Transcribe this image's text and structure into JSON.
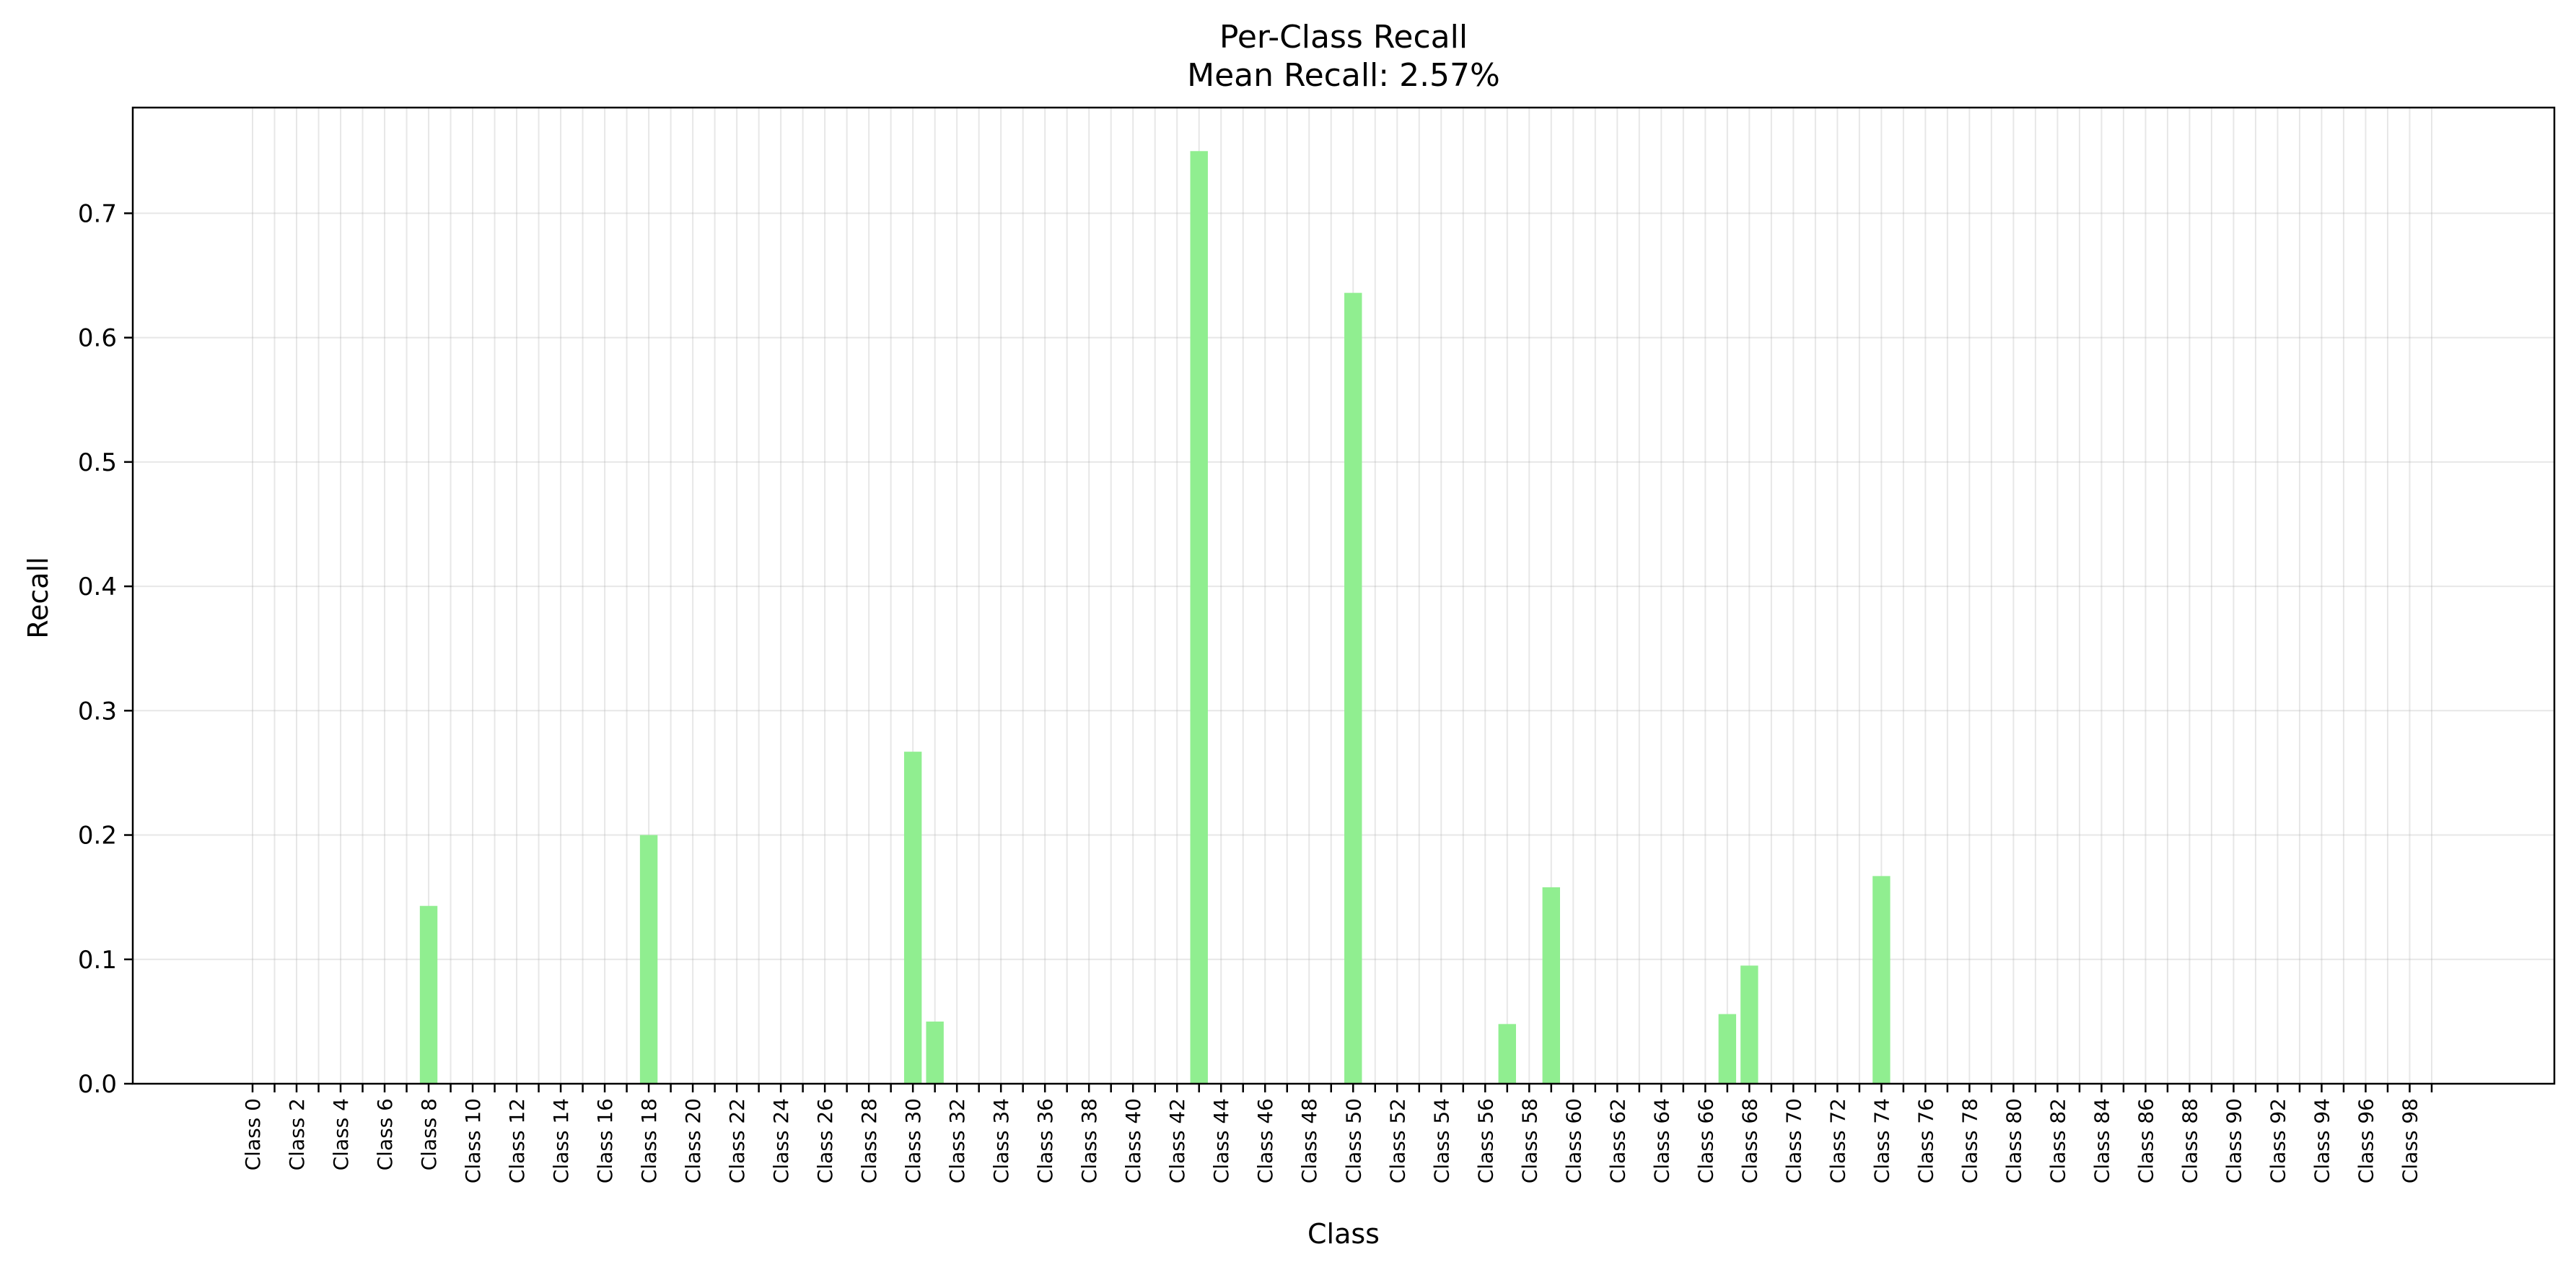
{
  "chart_data": {
    "type": "bar",
    "title": "Per-Class Recall",
    "subtitle": "Mean Recall: 2.57%",
    "xlabel": "Class",
    "ylabel": "Recall",
    "ylim": [
      0,
      0.785
    ],
    "yticks": [
      0.0,
      0.1,
      0.2,
      0.3,
      0.4,
      0.5,
      0.6,
      0.7
    ],
    "ytick_labels": [
      "0.0",
      "0.1",
      "0.2",
      "0.3",
      "0.4",
      "0.5",
      "0.6",
      "0.7"
    ],
    "grid": true,
    "bar_color": "#90ee90",
    "categories": [
      "Class 0",
      "Class 1",
      "Class 2",
      "Class 3",
      "Class 4",
      "Class 5",
      "Class 6",
      "Class 7",
      "Class 8",
      "Class 9",
      "Class 10",
      "Class 11",
      "Class 12",
      "Class 13",
      "Class 14",
      "Class 15",
      "Class 16",
      "Class 17",
      "Class 18",
      "Class 19",
      "Class 20",
      "Class 21",
      "Class 22",
      "Class 23",
      "Class 24",
      "Class 25",
      "Class 26",
      "Class 27",
      "Class 28",
      "Class 29",
      "Class 30",
      "Class 31",
      "Class 32",
      "Class 33",
      "Class 34",
      "Class 35",
      "Class 36",
      "Class 37",
      "Class 38",
      "Class 39",
      "Class 40",
      "Class 41",
      "Class 42",
      "Class 43",
      "Class 44",
      "Class 45",
      "Class 46",
      "Class 47",
      "Class 48",
      "Class 49",
      "Class 50",
      "Class 51",
      "Class 52",
      "Class 53",
      "Class 54",
      "Class 55",
      "Class 56",
      "Class 57",
      "Class 58",
      "Class 59",
      "Class 60",
      "Class 61",
      "Class 62",
      "Class 63",
      "Class 64",
      "Class 65",
      "Class 66",
      "Class 67",
      "Class 68",
      "Class 69",
      "Class 70",
      "Class 71",
      "Class 72",
      "Class 73",
      "Class 74",
      "Class 75",
      "Class 76",
      "Class 77",
      "Class 78",
      "Class 79",
      "Class 80",
      "Class 81",
      "Class 82",
      "Class 83",
      "Class 84",
      "Class 85",
      "Class 86",
      "Class 87",
      "Class 88",
      "Class 89",
      "Class 90",
      "Class 91",
      "Class 92",
      "Class 93",
      "Class 94",
      "Class 95",
      "Class 96",
      "Class 97",
      "Class 98",
      "Class 99"
    ],
    "labeled_every": 2,
    "values": [
      0,
      0,
      0,
      0,
      0,
      0,
      0,
      0,
      0.143,
      0,
      0,
      0,
      0,
      0,
      0,
      0,
      0,
      0,
      0.2,
      0,
      0,
      0,
      0,
      0,
      0,
      0,
      0,
      0,
      0,
      0,
      0.267,
      0.05,
      0,
      0,
      0,
      0,
      0,
      0,
      0,
      0,
      0,
      0,
      0,
      0.75,
      0,
      0,
      0,
      0,
      0,
      0,
      0.636,
      0,
      0,
      0,
      0,
      0,
      0,
      0.048,
      0,
      0.158,
      0,
      0,
      0,
      0,
      0,
      0,
      0,
      0.056,
      0.095,
      0,
      0,
      0,
      0,
      0,
      0.167,
      0,
      0,
      0,
      0,
      0,
      0,
      0,
      0,
      0,
      0,
      0,
      0,
      0,
      0,
      0,
      0,
      0,
      0,
      0,
      0,
      0,
      0,
      0,
      0,
      0
    ]
  }
}
